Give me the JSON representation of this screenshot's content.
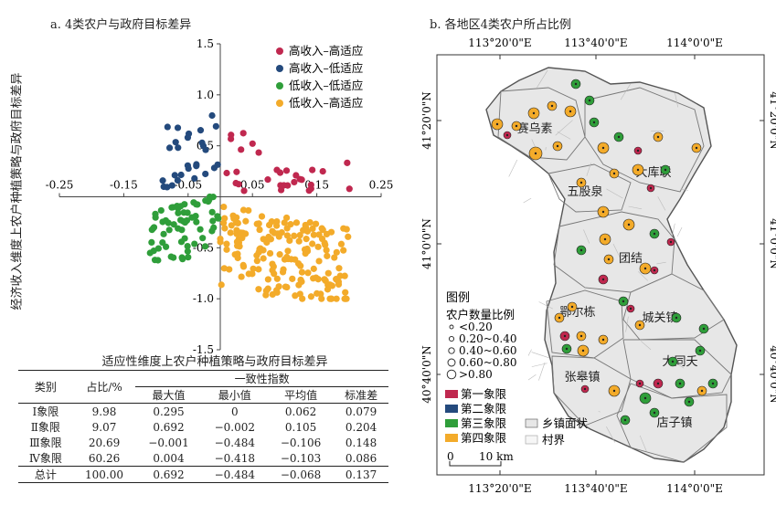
{
  "panel_a_title": "a. 4类农户与政府目标差异",
  "panel_b_title": "b. 各地区4类农户所占比例",
  "chart_data": [
    {
      "type": "scatter",
      "xlabel": "适应性维度上农户种植策略与政府目标差异",
      "ylabel": "经济收入维度上农户种植策略与政府目标差异",
      "xlim": [
        -0.25,
        0.25
      ],
      "ylim": [
        -1.5,
        1.5
      ],
      "x_ticks": [
        "-0.25",
        "-0.15",
        "-0.05",
        "0.05",
        "0.15",
        "0.25"
      ],
      "x_tick_values": [
        -0.25,
        -0.15,
        -0.05,
        0.05,
        0.15,
        0.25
      ],
      "y_ticks": [
        "1.5",
        "1.0",
        "0.5",
        "-0.5",
        "-1.0",
        "-1.5"
      ],
      "y_tick_values": [
        1.5,
        1.0,
        0.5,
        -0.5,
        -1.0,
        -1.5
      ],
      "legend_position": "top-right",
      "series": [
        {
          "name": "高收入–高适应",
          "color": "#c0284f",
          "count": 30,
          "xrange": [
            0,
            0.21
          ],
          "yrange": [
            0,
            0.7
          ]
        },
        {
          "name": "高收入–低适应",
          "color": "#244a7d",
          "count": 28,
          "xrange": [
            -0.09,
            0
          ],
          "yrange": [
            0,
            1.2
          ]
        },
        {
          "name": "低收入–低适应",
          "color": "#2f9e3a",
          "count": 65,
          "xrange": [
            -0.11,
            0
          ],
          "yrange": [
            -1.1,
            0
          ]
        },
        {
          "name": "低收入–高适应",
          "color": "#f3ab2a",
          "count": 180,
          "xrange": [
            0,
            0.2
          ],
          "yrange": [
            -1.0,
            0
          ]
        }
      ]
    },
    {
      "type": "table",
      "headers": [
        "类别",
        "占比/%",
        "一致性指数",
        "最大值",
        "最小值",
        "平均值",
        "标准差"
      ],
      "rows": [
        [
          "Ⅰ象限",
          "9.98",
          "0.295",
          "0",
          "0.062",
          "0.079"
        ],
        [
          "Ⅱ象限",
          "9.07",
          "0.692",
          "−0.002",
          "0.105",
          "0.204"
        ],
        [
          "Ⅲ象限",
          "20.69",
          "−0.001",
          "−0.484",
          "−0.106",
          "0.148"
        ],
        [
          "Ⅳ象限",
          "60.26",
          "0.004",
          "−0.418",
          "−0.103",
          "0.086"
        ],
        [
          "总计",
          "100.00",
          "0.692",
          "−0.484",
          "−0.068",
          "0.137"
        ]
      ]
    }
  ],
  "map": {
    "top_lon": [
      "113°20'0\"E",
      "113°40'0\"E",
      "114°0'0\"E"
    ],
    "bottom_lon": [
      "113°20'0\"E",
      "113°40'0\"E",
      "114°0'0\"E"
    ],
    "left_lat": [
      "41°20'0\"N",
      "41°0'0\"N",
      "40°40'0\"N"
    ],
    "right_lat": [
      "41°20'0\"N",
      "41°0'0\"N",
      "40°40'0\"N"
    ],
    "towns": [
      "赛乌素",
      "大库联",
      "五股泉",
      "团结",
      "鄂尔栋",
      "城关镇",
      "大同夭",
      "张皋镇",
      "店子镇"
    ],
    "legend": {
      "title": "图例",
      "size_title": "农户数量比例",
      "sizes": [
        "<0.20",
        "0.20~0.40",
        "0.40~0.60",
        "0.60~0.80",
        ">0.80"
      ],
      "quadrants": [
        "第一象限",
        "第二象限",
        "第三象限",
        "第四象限"
      ],
      "quadrant_colors": [
        "#c0284f",
        "#244a7d",
        "#2f9e3a",
        "#f3ab2a"
      ],
      "area_labels": [
        "乡镇面状",
        "村界"
      ],
      "scale": [
        "0",
        "10 km"
      ]
    }
  }
}
